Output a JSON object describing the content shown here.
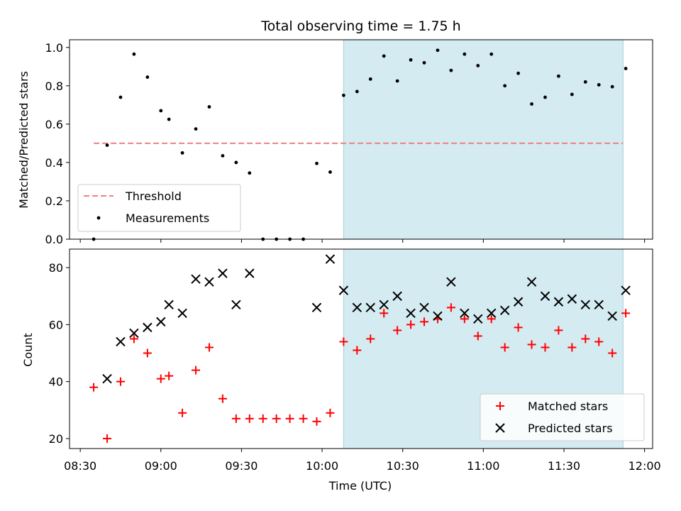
{
  "title": "Total observing time = 1.75 h",
  "chart_data": [
    {
      "type": "scatter",
      "name": "top-panel",
      "ylabel": "Matched/Predicted stars",
      "ylim": [
        0,
        1.04
      ],
      "yticks": [
        0.0,
        0.2,
        0.4,
        0.6,
        0.8,
        1.0
      ],
      "ytick_labels": [
        "0.0",
        "0.2",
        "0.4",
        "0.6",
        "0.8",
        "1.0"
      ],
      "threshold": {
        "name": "Threshold",
        "value": 0.5,
        "x_start": "08:35",
        "x_end": "11:52",
        "color": "#f08080"
      },
      "highlight": {
        "x_start": "10:08",
        "x_end": "11:52",
        "color": "#d4ebf1"
      },
      "legend": {
        "position": "lower-left",
        "entries": [
          "Threshold",
          "Measurements"
        ]
      },
      "series": [
        {
          "name": "Measurements",
          "marker": "dot",
          "color": "#000000",
          "points": [
            [
              "08:35",
              0.0
            ],
            [
              "08:40",
              0.49
            ],
            [
              "08:45",
              0.74
            ],
            [
              "08:50",
              0.965
            ],
            [
              "08:55",
              0.845
            ],
            [
              "09:00",
              0.67
            ],
            [
              "09:03",
              0.625
            ],
            [
              "09:08",
              0.45
            ],
            [
              "09:13",
              0.575
            ],
            [
              "09:18",
              0.69
            ],
            [
              "09:23",
              0.435
            ],
            [
              "09:28",
              0.4
            ],
            [
              "09:33",
              0.345
            ],
            [
              "09:38",
              0.0
            ],
            [
              "09:43",
              0.0
            ],
            [
              "09:48",
              0.0
            ],
            [
              "09:53",
              0.0
            ],
            [
              "09:58",
              0.395
            ],
            [
              "10:03",
              0.35
            ],
            [
              "10:08",
              0.75
            ],
            [
              "10:13",
              0.77
            ],
            [
              "10:18",
              0.835
            ],
            [
              "10:23",
              0.955
            ],
            [
              "10:28",
              0.825
            ],
            [
              "10:33",
              0.935
            ],
            [
              "10:38",
              0.92
            ],
            [
              "10:43",
              0.985
            ],
            [
              "10:48",
              0.88
            ],
            [
              "10:53",
              0.965
            ],
            [
              "10:58",
              0.905
            ],
            [
              "11:03",
              0.965
            ],
            [
              "11:08",
              0.8
            ],
            [
              "11:13",
              0.865
            ],
            [
              "11:18",
              0.705
            ],
            [
              "11:23",
              0.74
            ],
            [
              "11:28",
              0.85
            ],
            [
              "11:33",
              0.755
            ],
            [
              "11:38",
              0.82
            ],
            [
              "11:43",
              0.805
            ],
            [
              "11:48",
              0.795
            ],
            [
              "11:53",
              0.89
            ]
          ]
        }
      ]
    },
    {
      "type": "scatter",
      "name": "bottom-panel",
      "xlabel": "Time (UTC)",
      "ylabel": "Count",
      "xlim": [
        "08:26",
        "12:03"
      ],
      "ylim": [
        16.5,
        86.5
      ],
      "yticks": [
        20,
        40,
        60,
        80
      ],
      "ytick_labels": [
        "20",
        "40",
        "60",
        "80"
      ],
      "xticks": [
        "08:30",
        "09:00",
        "09:30",
        "10:00",
        "10:30",
        "11:00",
        "11:30",
        "12:00"
      ],
      "xtick_labels": [
        "08:30",
        "09:00",
        "09:30",
        "10:00",
        "10:30",
        "11:00",
        "11:30",
        "12:00"
      ],
      "highlight": {
        "x_start": "10:08",
        "x_end": "11:52",
        "color": "#d4ebf1"
      },
      "legend": {
        "position": "lower-right",
        "entries": [
          "Matched stars",
          "Predicted stars"
        ]
      },
      "series": [
        {
          "name": "Matched stars",
          "marker": "plus",
          "color": "#ff0000",
          "points": [
            [
              "08:35",
              38
            ],
            [
              "08:40",
              20
            ],
            [
              "08:45",
              40
            ],
            [
              "08:50",
              55
            ],
            [
              "08:55",
              50
            ],
            [
              "09:00",
              41
            ],
            [
              "09:03",
              42
            ],
            [
              "09:08",
              29
            ],
            [
              "09:13",
              44
            ],
            [
              "09:18",
              52
            ],
            [
              "09:23",
              34
            ],
            [
              "09:28",
              27
            ],
            [
              "09:33",
              27
            ],
            [
              "09:38",
              27
            ],
            [
              "09:43",
              27
            ],
            [
              "09:48",
              27
            ],
            [
              "09:53",
              27
            ],
            [
              "09:58",
              26
            ],
            [
              "10:03",
              29
            ],
            [
              "10:08",
              54
            ],
            [
              "10:13",
              51
            ],
            [
              "10:18",
              55
            ],
            [
              "10:23",
              64
            ],
            [
              "10:28",
              58
            ],
            [
              "10:33",
              60
            ],
            [
              "10:38",
              61
            ],
            [
              "10:43",
              62
            ],
            [
              "10:48",
              66
            ],
            [
              "10:53",
              62
            ],
            [
              "10:58",
              56
            ],
            [
              "11:03",
              62
            ],
            [
              "11:08",
              52
            ],
            [
              "11:13",
              59
            ],
            [
              "11:18",
              53
            ],
            [
              "11:23",
              52
            ],
            [
              "11:28",
              58
            ],
            [
              "11:33",
              52
            ],
            [
              "11:38",
              55
            ],
            [
              "11:43",
              54
            ],
            [
              "11:48",
              50
            ],
            [
              "11:53",
              64
            ]
          ]
        },
        {
          "name": "Predicted stars",
          "marker": "x",
          "color": "#000000",
          "points": [
            [
              "08:40",
              41
            ],
            [
              "08:45",
              54
            ],
            [
              "08:50",
              57
            ],
            [
              "08:55",
              59
            ],
            [
              "09:00",
              61
            ],
            [
              "09:03",
              67
            ],
            [
              "09:08",
              64
            ],
            [
              "09:13",
              76
            ],
            [
              "09:18",
              75
            ],
            [
              "09:23",
              78
            ],
            [
              "09:28",
              67
            ],
            [
              "09:33",
              78
            ],
            [
              "09:58",
              66
            ],
            [
              "10:03",
              83
            ],
            [
              "10:08",
              72
            ],
            [
              "10:13",
              66
            ],
            [
              "10:18",
              66
            ],
            [
              "10:23",
              67
            ],
            [
              "10:28",
              70
            ],
            [
              "10:33",
              64
            ],
            [
              "10:38",
              66
            ],
            [
              "10:43",
              63
            ],
            [
              "10:48",
              75
            ],
            [
              "10:53",
              64
            ],
            [
              "10:58",
              62
            ],
            [
              "11:03",
              64
            ],
            [
              "11:08",
              65
            ],
            [
              "11:13",
              68
            ],
            [
              "11:18",
              75
            ],
            [
              "11:23",
              70
            ],
            [
              "11:28",
              68
            ],
            [
              "11:33",
              69
            ],
            [
              "11:38",
              67
            ],
            [
              "11:43",
              67
            ],
            [
              "11:48",
              63
            ],
            [
              "11:53",
              72
            ]
          ]
        }
      ]
    }
  ]
}
